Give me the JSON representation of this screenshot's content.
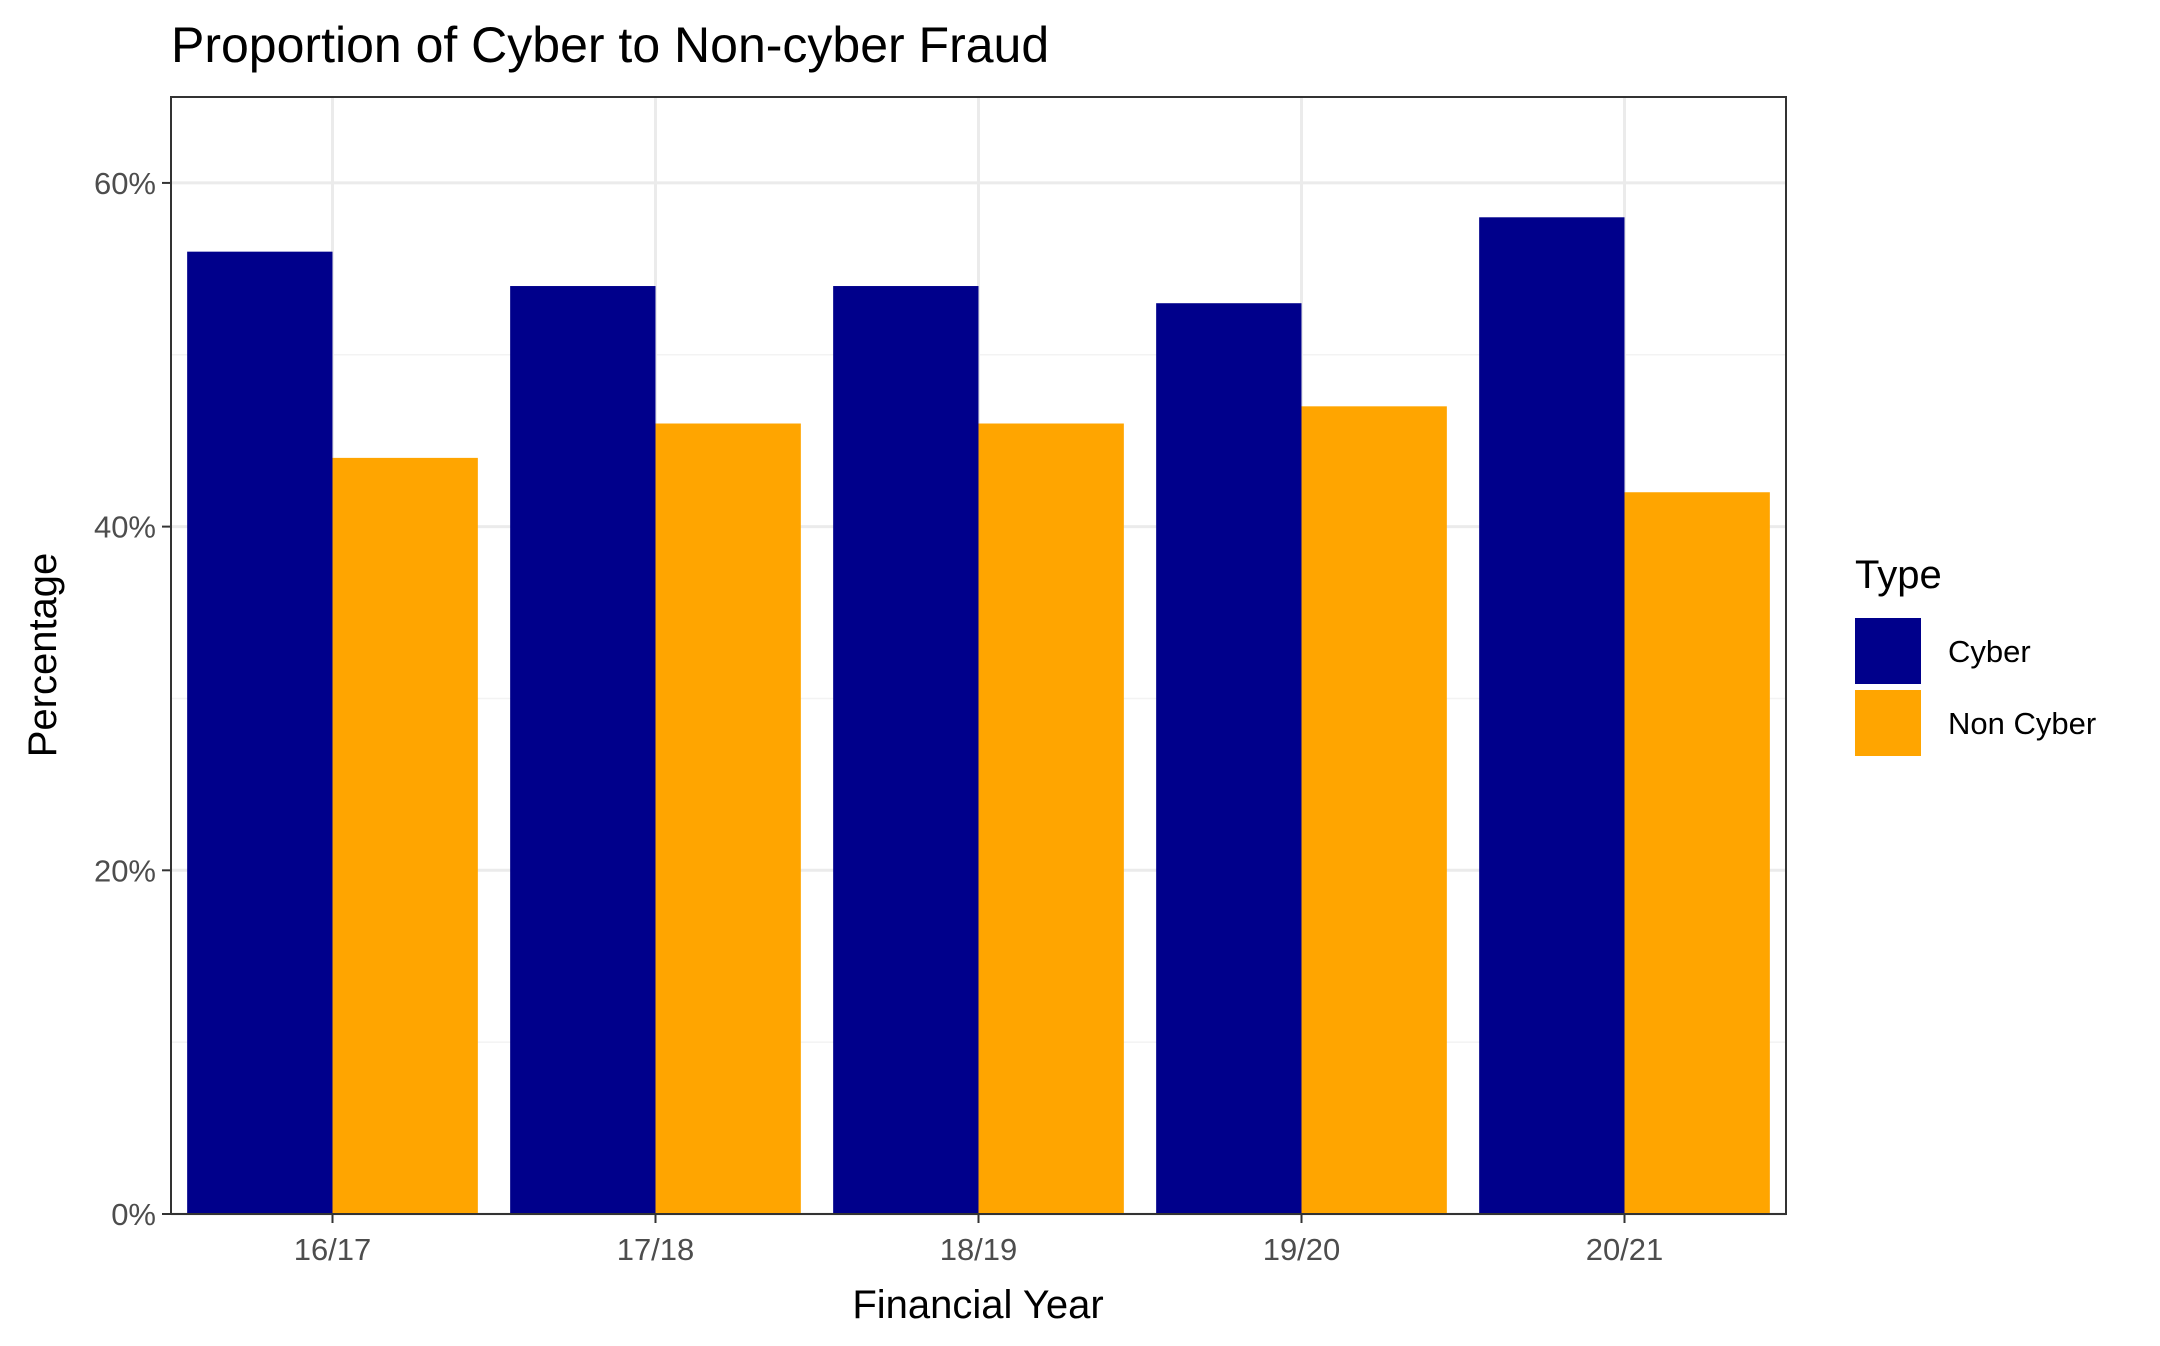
{
  "chart_data": {
    "type": "bar",
    "title": "Proportion of Cyber to Non-cyber Fraud",
    "xlabel": "Financial Year",
    "ylabel": "Percentage",
    "categories": [
      "16/17",
      "17/18",
      "18/19",
      "19/20",
      "20/21"
    ],
    "series": [
      {
        "name": "Cyber",
        "color": "#00008B",
        "values": [
          56,
          54,
          54,
          53,
          58
        ]
      },
      {
        "name": "Non Cyber",
        "color": "#FFA500",
        "values": [
          44,
          46,
          46,
          47,
          42
        ]
      }
    ],
    "ylim": [
      0,
      65
    ],
    "yticks": [
      0,
      20,
      40,
      60
    ],
    "ytick_labels": [
      "0%",
      "20%",
      "40%",
      "60%"
    ],
    "grid": true,
    "legend": {
      "title": "Type",
      "position": "right"
    }
  }
}
